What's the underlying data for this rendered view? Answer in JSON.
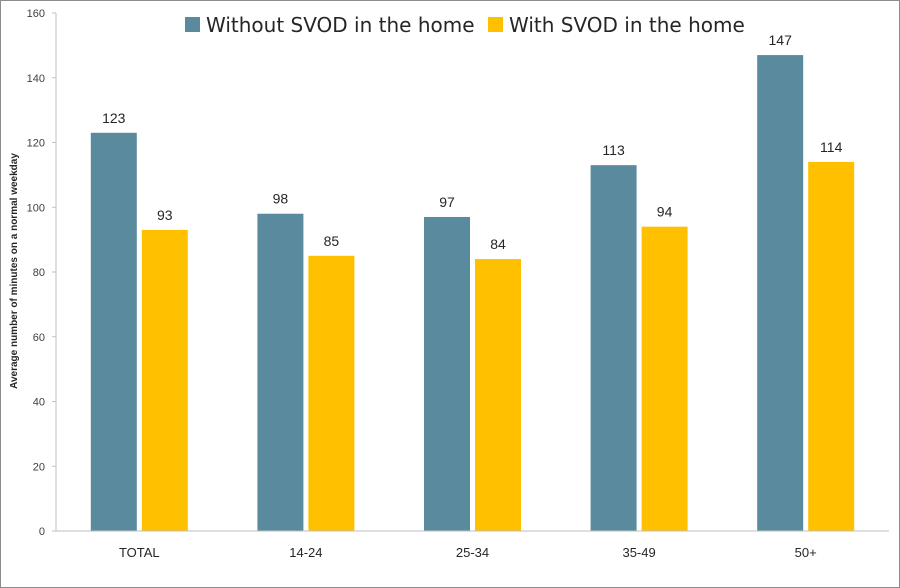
{
  "chart_data": {
    "type": "bar",
    "title": "",
    "xlabel": "",
    "ylabel": "Average number of minutes on a normal weekday",
    "categories": [
      "TOTAL",
      "14-24",
      "25-34",
      "35-49",
      "50+"
    ],
    "series": [
      {
        "name": "Without SVOD in the home",
        "color": "#5a8a9e",
        "values": [
          123,
          98,
          97,
          113,
          147
        ]
      },
      {
        "name": "With SVOD in the home",
        "color": "#ffc000",
        "values": [
          93,
          85,
          84,
          94,
          114
        ]
      }
    ],
    "ylim": [
      0,
      160
    ],
    "yticks": [
      0,
      20,
      40,
      60,
      80,
      100,
      120,
      140,
      160
    ],
    "grid": false,
    "legend": "top",
    "data_labels": true
  }
}
